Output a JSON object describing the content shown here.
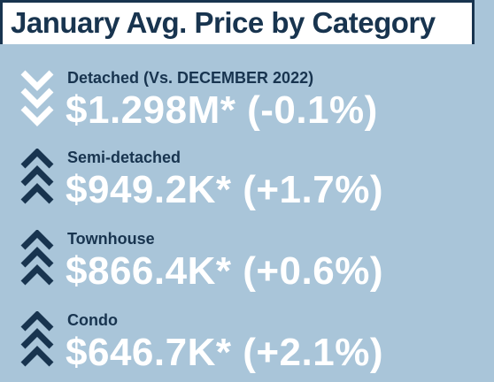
{
  "title": "January Avg. Price by Category",
  "categories": [
    {
      "label": "Detached (Vs. DECEMBER 2022)",
      "value": "$1.298M* (-0.1%)",
      "trend": "down",
      "icon": "chevron-down-icon"
    },
    {
      "label": "Semi-detached",
      "value": "$949.2K* (+1.7%)",
      "trend": "up",
      "icon": "chevron-up-icon"
    },
    {
      "label": "Townhouse",
      "value": "$866.4K* (+0.6%)",
      "trend": "up",
      "icon": "chevron-up-icon"
    },
    {
      "label": "Condo",
      "value": "$646.7K* (+2.1%)",
      "trend": "up",
      "icon": "chevron-up-icon"
    }
  ],
  "colors": {
    "background": "#a9c5d9",
    "header_bg": "#ffffff",
    "navy": "#18344f",
    "value_text": "#ffffff"
  }
}
